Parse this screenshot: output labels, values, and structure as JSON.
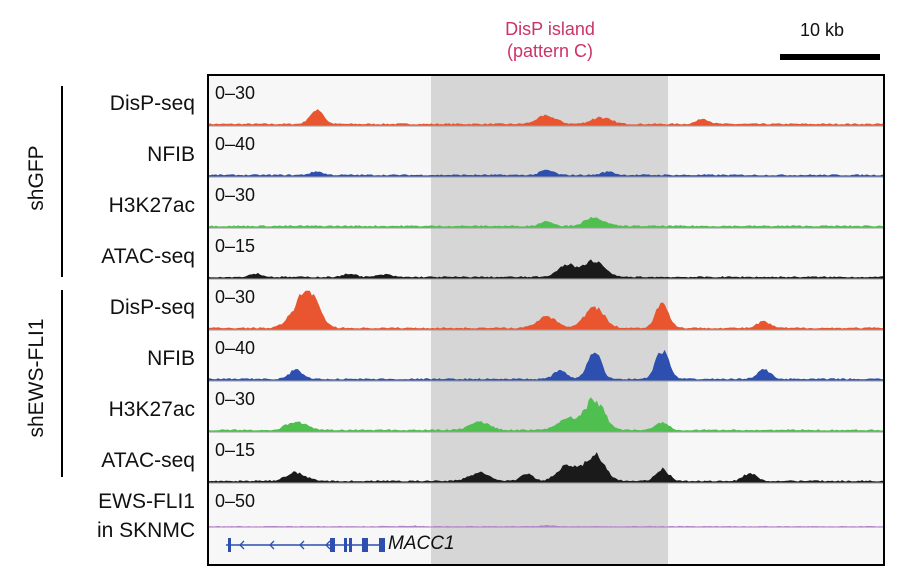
{
  "island": {
    "line1": "DisP island",
    "line2": "(pattern C)",
    "color": "#cc3366"
  },
  "scale_bar": {
    "label": "10 kb"
  },
  "groups": [
    {
      "label": "shGFP"
    },
    {
      "label": "shEWS-FLI1"
    }
  ],
  "tracks": [
    {
      "label": "DisP-seq",
      "range": "0–30",
      "color": "#e8552f",
      "group": "shGFP",
      "peaks": [
        [
          0.16,
          0.45,
          2
        ],
        [
          0.5,
          0.25,
          3
        ],
        [
          0.58,
          0.2,
          3
        ],
        [
          0.73,
          0.15,
          2
        ]
      ]
    },
    {
      "label": "NFIB",
      "range": "0–40",
      "color": "#2c4fb0",
      "group": "shGFP",
      "peaks": [
        [
          0.16,
          0.1,
          2
        ],
        [
          0.5,
          0.15,
          2
        ],
        [
          0.59,
          0.1,
          2
        ]
      ]
    },
    {
      "label": "H3K27ac",
      "range": "0–30",
      "color": "#4fbf4f",
      "group": "shGFP",
      "peaks": [
        [
          0.57,
          0.25,
          3
        ],
        [
          0.5,
          0.15,
          2
        ]
      ]
    },
    {
      "label": "ATAC-seq",
      "range": "0–15",
      "color": "#1a1a1a",
      "group": "shGFP",
      "peaks": [
        [
          0.53,
          0.35,
          3
        ],
        [
          0.57,
          0.5,
          3
        ],
        [
          0.21,
          0.1,
          2
        ],
        [
          0.07,
          0.1,
          2
        ],
        [
          0.26,
          0.08,
          2
        ]
      ]
    },
    {
      "label": "DisP-seq",
      "range": "0–30",
      "color": "#e8552f",
      "group": "shEWS-FLI1",
      "peaks": [
        [
          0.15,
          1.0,
          3
        ],
        [
          0.57,
          0.65,
          3
        ],
        [
          0.5,
          0.35,
          3
        ],
        [
          0.67,
          0.75,
          2
        ],
        [
          0.13,
          0.35,
          3
        ],
        [
          0.82,
          0.2,
          2
        ]
      ]
    },
    {
      "label": "NFIB",
      "range": "0–40",
      "color": "#2c4fb0",
      "group": "shEWS-FLI1",
      "peaks": [
        [
          0.57,
          0.85,
          2
        ],
        [
          0.52,
          0.25,
          2
        ],
        [
          0.67,
          0.85,
          2
        ],
        [
          0.13,
          0.3,
          2
        ],
        [
          0.82,
          0.3,
          2
        ]
      ]
    },
    {
      "label": "H3K27ac",
      "range": "0–30",
      "color": "#4fbf4f",
      "group": "shEWS-FLI1",
      "peaks": [
        [
          0.57,
          0.9,
          3
        ],
        [
          0.53,
          0.35,
          3
        ],
        [
          0.13,
          0.25,
          3
        ],
        [
          0.4,
          0.25,
          3
        ],
        [
          0.67,
          0.25,
          2
        ]
      ]
    },
    {
      "label": "ATAC-seq",
      "range": "0–15",
      "color": "#1a1a1a",
      "group": "shEWS-FLI1",
      "peaks": [
        [
          0.57,
          0.8,
          3
        ],
        [
          0.53,
          0.45,
          3
        ],
        [
          0.13,
          0.25,
          3
        ],
        [
          0.4,
          0.25,
          3
        ],
        [
          0.67,
          0.35,
          2
        ],
        [
          0.8,
          0.25,
          2
        ],
        [
          0.47,
          0.2,
          2
        ]
      ]
    },
    {
      "label": "EWS-FLI1\nin SKNMC",
      "range": "0–50",
      "color": "#b085c8",
      "group": "",
      "peaks": [
        [
          0.5,
          0.05,
          2
        ],
        [
          0.3,
          0.04,
          2
        ]
      ]
    }
  ],
  "gene": {
    "name": "MACC1",
    "color": "#2c4fb0"
  }
}
